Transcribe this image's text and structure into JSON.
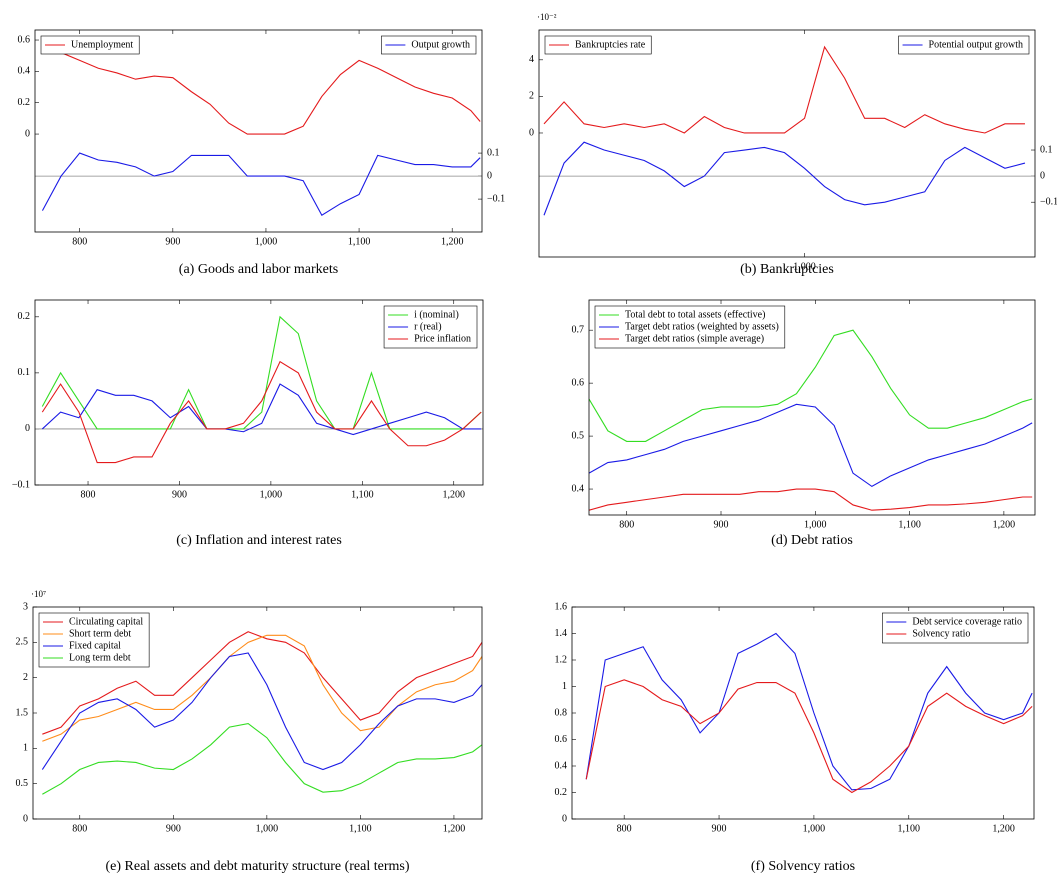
{
  "chart_data": [
    {
      "type": "line",
      "caption": "(a) Goods and labor markets",
      "x": [
        760,
        780,
        800,
        820,
        840,
        860,
        880,
        900,
        920,
        940,
        960,
        980,
        1000,
        1020,
        1040,
        1060,
        1080,
        1100,
        1120,
        1140,
        1160,
        1180,
        1200,
        1220,
        1230
      ],
      "xlim": [
        752,
        1232
      ],
      "xticks": [
        800,
        900,
        {
          "value": 1000,
          "label": "1,000"
        },
        {
          "value": 1100,
          "label": "1,100"
        },
        {
          "value": 1200,
          "label": "1,200"
        }
      ],
      "ylim": [
        -0.625,
        0.664
      ],
      "yticks": [
        0,
        0.2,
        0.4,
        0.6
      ],
      "y2lim": [
        -0.243,
        0.635
      ],
      "y2ticks": [
        {
          "value": -0.1,
          "label": "−0.1"
        },
        0,
        0.1
      ],
      "zero_line": "y2",
      "series": [
        {
          "name": "Unemployment",
          "color": "#e41a1c",
          "legend": "top-left",
          "values": [
            0.55,
            0.52,
            0.47,
            0.42,
            0.39,
            0.35,
            0.37,
            0.36,
            0.27,
            0.19,
            0.07,
            0.0,
            0.0,
            0.0,
            0.05,
            0.24,
            0.38,
            0.47,
            0.42,
            0.36,
            0.3,
            0.26,
            0.23,
            0.15,
            0.08
          ]
        },
        {
          "name": "Output growth",
          "color": "#1a1ae6",
          "axis": "y2",
          "legend": "top-right",
          "values": [
            -0.15,
            0.0,
            0.1,
            0.07,
            0.06,
            0.04,
            0.0,
            0.02,
            0.09,
            0.09,
            0.09,
            0.0,
            0.0,
            0.0,
            -0.02,
            -0.17,
            -0.12,
            -0.08,
            0.09,
            0.07,
            0.05,
            0.05,
            0.04,
            0.04,
            0.08
          ]
        }
      ]
    },
    {
      "type": "line",
      "caption": "(b) Bankruptcies",
      "scale_label": "·10⁻²",
      "x": [
        740,
        760,
        780,
        800,
        820,
        840,
        860,
        880,
        900,
        920,
        940,
        960,
        980,
        1000,
        1020,
        1040,
        1060,
        1080,
        1100,
        1120,
        1140,
        1160,
        1180,
        1200,
        1220
      ],
      "xlim": [
        735,
        1230
      ],
      "xticks": [
        {
          "value": 1000,
          "label": "1,000"
        }
      ],
      "ylim": [
        -6.78,
        5.63
      ],
      "yticks": [
        0,
        2,
        4
      ],
      "y2lim": [
        -0.31,
        0.56
      ],
      "y2ticks": [
        {
          "value": -0.1,
          "label": "−0.1"
        },
        0,
        0.1
      ],
      "zero_line": "y2",
      "series": [
        {
          "name": "Bankruptcies rate",
          "color": "#e41a1c",
          "legend": "top-left",
          "values": [
            0.5,
            1.7,
            0.5,
            0.3,
            0.5,
            0.3,
            0.5,
            0.0,
            0.9,
            0.3,
            0.0,
            0.0,
            0.0,
            0.8,
            4.7,
            3.0,
            0.8,
            0.8,
            0.3,
            1.0,
            0.5,
            0.2,
            0.0,
            0.5,
            0.5
          ]
        },
        {
          "name": "Potential output growth",
          "color": "#1a1ae6",
          "axis": "y2",
          "legend": "top-right",
          "values": [
            -0.15,
            0.05,
            0.13,
            0.1,
            0.08,
            0.06,
            0.02,
            -0.04,
            0.0,
            0.09,
            0.1,
            0.11,
            0.09,
            0.03,
            -0.04,
            -0.09,
            -0.11,
            -0.1,
            -0.08,
            -0.06,
            0.06,
            0.11,
            0.07,
            0.03,
            0.05
          ]
        }
      ]
    },
    {
      "type": "line",
      "caption": "(c) Inflation and interest rates",
      "x": [
        750,
        770,
        790,
        810,
        830,
        850,
        870,
        890,
        910,
        930,
        950,
        970,
        990,
        1010,
        1030,
        1050,
        1070,
        1090,
        1110,
        1130,
        1150,
        1170,
        1190,
        1210,
        1230
      ],
      "xlim": [
        742,
        1232
      ],
      "xticks": [
        800,
        900,
        {
          "value": 1000,
          "label": "1,000"
        },
        {
          "value": 1100,
          "label": "1,100"
        },
        {
          "value": 1200,
          "label": "1,200"
        }
      ],
      "ylim": [
        -0.1,
        0.23
      ],
      "yticks": [
        {
          "value": -0.1,
          "label": "−0.1"
        },
        0,
        0.1,
        0.2
      ],
      "zero_line": "y",
      "legend": "top-right",
      "series": [
        {
          "name": "i (nominal)",
          "color": "#33dd22",
          "values": [
            0.04,
            0.1,
            0.05,
            0.0,
            0.0,
            0.0,
            0.0,
            0.0,
            0.07,
            0.0,
            0.0,
            0.0,
            0.03,
            0.2,
            0.17,
            0.05,
            0.0,
            0.0,
            0.1,
            0.0,
            0.0,
            0.0,
            0.0,
            0.0,
            0.03
          ]
        },
        {
          "name": "r (real)",
          "color": "#1a1ae6",
          "values": [
            0.0,
            0.03,
            0.02,
            0.07,
            0.06,
            0.06,
            0.05,
            0.02,
            0.04,
            0.0,
            0.0,
            -0.005,
            0.01,
            0.08,
            0.06,
            0.01,
            0.0,
            -0.01,
            0.0,
            0.01,
            0.02,
            0.03,
            0.02,
            0.0,
            0.0
          ]
        },
        {
          "name": "Price inflation",
          "color": "#e41a1c",
          "values": [
            0.03,
            0.08,
            0.03,
            -0.06,
            -0.06,
            -0.05,
            -0.05,
            0.01,
            0.05,
            0.0,
            0.0,
            0.01,
            0.05,
            0.12,
            0.1,
            0.03,
            0.0,
            0.0,
            0.05,
            0.0,
            -0.03,
            -0.03,
            -0.02,
            0.0,
            0.03
          ]
        }
      ]
    },
    {
      "type": "line",
      "caption": "(d) Debt ratios",
      "x": [
        760,
        780,
        800,
        820,
        840,
        860,
        880,
        900,
        920,
        940,
        960,
        980,
        1000,
        1020,
        1040,
        1060,
        1080,
        1100,
        1120,
        1140,
        1160,
        1180,
        1200,
        1220,
        1230
      ],
      "xlim": [
        760,
        1233
      ],
      "xticks": [
        800,
        900,
        {
          "value": 1000,
          "label": "1,000"
        },
        {
          "value": 1100,
          "label": "1,100"
        },
        {
          "value": 1200,
          "label": "1,200"
        }
      ],
      "ylim": [
        0.351,
        0.757
      ],
      "yticks": [
        0.4,
        0.5,
        0.6,
        0.7
      ],
      "legend": "top-left",
      "series": [
        {
          "name": "Total debt to total assets (effective)",
          "color": "#33dd22",
          "values": [
            0.57,
            0.51,
            0.49,
            0.49,
            0.51,
            0.53,
            0.55,
            0.555,
            0.555,
            0.555,
            0.56,
            0.58,
            0.63,
            0.69,
            0.7,
            0.65,
            0.59,
            0.54,
            0.515,
            0.515,
            0.525,
            0.535,
            0.55,
            0.565,
            0.57
          ]
        },
        {
          "name": "Target debt ratios (weighted by assets)",
          "color": "#1a1ae6",
          "values": [
            0.43,
            0.45,
            0.455,
            0.465,
            0.475,
            0.49,
            0.5,
            0.51,
            0.52,
            0.53,
            0.545,
            0.56,
            0.555,
            0.52,
            0.43,
            0.405,
            0.425,
            0.44,
            0.455,
            0.465,
            0.475,
            0.485,
            0.5,
            0.515,
            0.525
          ]
        },
        {
          "name": "Target debt ratios (simple average)",
          "color": "#e41a1c",
          "values": [
            0.36,
            0.37,
            0.375,
            0.38,
            0.385,
            0.39,
            0.39,
            0.39,
            0.39,
            0.395,
            0.395,
            0.4,
            0.4,
            0.395,
            0.37,
            0.36,
            0.362,
            0.365,
            0.37,
            0.37,
            0.372,
            0.375,
            0.38,
            0.385,
            0.385
          ]
        }
      ]
    },
    {
      "type": "line",
      "caption": "(e) Real assets and debt maturity structure (real terms)",
      "scale_label": "·10⁷",
      "x": [
        760,
        780,
        800,
        820,
        840,
        860,
        880,
        900,
        920,
        940,
        960,
        980,
        1000,
        1020,
        1040,
        1060,
        1080,
        1100,
        1120,
        1140,
        1160,
        1180,
        1200,
        1220,
        1230
      ],
      "xlim": [
        750,
        1230
      ],
      "xticks": [
        800,
        900,
        {
          "value": 1000,
          "label": "1,000"
        },
        {
          "value": 1100,
          "label": "1,100"
        },
        {
          "value": 1200,
          "label": "1,200"
        }
      ],
      "ylim": [
        0,
        3
      ],
      "yticks": [
        0,
        0.5,
        1,
        1.5,
        2,
        2.5,
        3
      ],
      "legend": "top-left",
      "series": [
        {
          "name": "Circulating capital",
          "color": "#e41a1c",
          "values": [
            1.2,
            1.3,
            1.6,
            1.7,
            1.85,
            1.95,
            1.75,
            1.75,
            2.0,
            2.25,
            2.5,
            2.65,
            2.55,
            2.5,
            2.35,
            2.0,
            1.7,
            1.4,
            1.5,
            1.8,
            2.0,
            2.1,
            2.2,
            2.3,
            2.5
          ]
        },
        {
          "name": "Short term debt",
          "color": "#ff8c1a",
          "values": [
            1.1,
            1.2,
            1.4,
            1.45,
            1.55,
            1.65,
            1.55,
            1.55,
            1.75,
            2.0,
            2.3,
            2.5,
            2.6,
            2.6,
            2.45,
            1.9,
            1.5,
            1.25,
            1.3,
            1.6,
            1.8,
            1.9,
            1.95,
            2.1,
            2.3
          ]
        },
        {
          "name": "Fixed capital",
          "color": "#1a1ae6",
          "values": [
            0.7,
            1.1,
            1.5,
            1.65,
            1.7,
            1.55,
            1.3,
            1.4,
            1.65,
            2.0,
            2.3,
            2.35,
            1.9,
            1.3,
            0.8,
            0.7,
            0.8,
            1.05,
            1.35,
            1.6,
            1.7,
            1.7,
            1.65,
            1.75,
            1.9
          ]
        },
        {
          "name": "Long term debt",
          "color": "#33dd22",
          "values": [
            0.35,
            0.5,
            0.7,
            0.8,
            0.82,
            0.8,
            0.72,
            0.7,
            0.85,
            1.05,
            1.3,
            1.35,
            1.15,
            0.8,
            0.5,
            0.38,
            0.4,
            0.5,
            0.65,
            0.8,
            0.85,
            0.85,
            0.87,
            0.95,
            1.05
          ]
        }
      ]
    },
    {
      "type": "line",
      "caption": "(f) Solvency ratios",
      "x": [
        760,
        780,
        800,
        820,
        840,
        860,
        880,
        900,
        920,
        940,
        960,
        980,
        1000,
        1020,
        1040,
        1060,
        1080,
        1100,
        1120,
        1140,
        1160,
        1180,
        1200,
        1220,
        1230
      ],
      "xlim": [
        745,
        1232
      ],
      "xticks": [
        800,
        900,
        {
          "value": 1000,
          "label": "1,000"
        },
        {
          "value": 1100,
          "label": "1,100"
        },
        {
          "value": 1200,
          "label": "1,200"
        }
      ],
      "ylim": [
        0,
        1.6
      ],
      "yticks": [
        0,
        0.2,
        0.4,
        0.6,
        0.8,
        1,
        1.2,
        1.4,
        1.6
      ],
      "legend": "top-right",
      "series": [
        {
          "name": "Debt service coverage ratio",
          "color": "#1a1ae6",
          "values": [
            0.3,
            1.2,
            1.25,
            1.3,
            1.05,
            0.9,
            0.65,
            0.8,
            1.25,
            1.32,
            1.4,
            1.25,
            0.8,
            0.4,
            0.22,
            0.23,
            0.3,
            0.55,
            0.95,
            1.15,
            0.95,
            0.8,
            0.75,
            0.8,
            0.95
          ]
        },
        {
          "name": "Solvency ratio",
          "color": "#e41a1c",
          "values": [
            0.3,
            1.0,
            1.05,
            1.0,
            0.9,
            0.85,
            0.72,
            0.8,
            0.98,
            1.03,
            1.03,
            0.95,
            0.65,
            0.3,
            0.2,
            0.28,
            0.4,
            0.55,
            0.85,
            0.95,
            0.85,
            0.78,
            0.72,
            0.78,
            0.85
          ]
        }
      ]
    }
  ]
}
